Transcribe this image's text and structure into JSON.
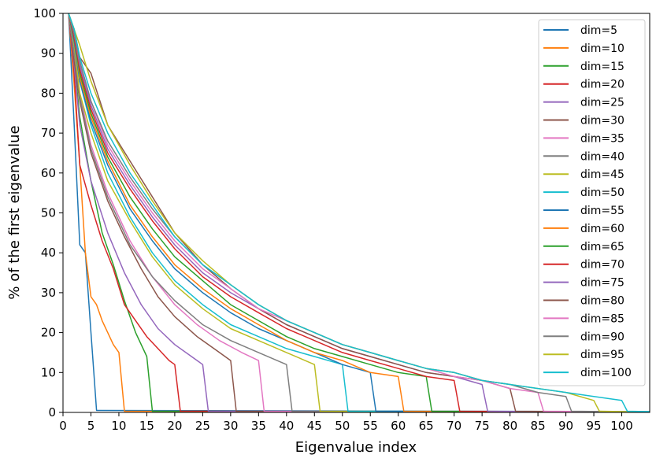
{
  "chart_data": {
    "type": "line",
    "xlabel": "Eigenvalue index",
    "ylabel": "% of the first eigenvalue",
    "xlim": [
      0,
      105
    ],
    "ylim": [
      0,
      100
    ],
    "xticks": [
      0,
      5,
      10,
      15,
      20,
      25,
      30,
      35,
      40,
      45,
      50,
      55,
      60,
      65,
      70,
      75,
      80,
      85,
      90,
      95,
      100
    ],
    "yticks": [
      0,
      10,
      20,
      30,
      40,
      50,
      60,
      70,
      80,
      90,
      100
    ],
    "grid": false,
    "legend_position": "top-right",
    "series": [
      {
        "name": "dim=5",
        "dim": 5,
        "x": [
          1,
          2,
          3,
          4,
          5,
          6,
          105
        ],
        "y": [
          100,
          72,
          42,
          40,
          20,
          0.5,
          0.2
        ],
        "color": "#1f77b4"
      },
      {
        "name": "dim=10",
        "dim": 10,
        "x": [
          1,
          2,
          3,
          4,
          5,
          6,
          7,
          8,
          9,
          10,
          11,
          105
        ],
        "y": [
          100,
          82,
          62,
          40,
          29,
          27,
          23,
          20,
          17,
          15,
          0.3,
          0.1
        ],
        "color": "#ff7f0e"
      },
      {
        "name": "dim=15",
        "dim": 15,
        "x": [
          1,
          2,
          3,
          5,
          7,
          9,
          11,
          13,
          15,
          16,
          105
        ],
        "y": [
          100,
          88,
          74,
          58,
          45,
          37,
          28,
          20,
          14,
          0.3,
          0.1
        ],
        "color": "#2ca02c"
      },
      {
        "name": "dim=20",
        "dim": 20,
        "x": [
          1,
          2,
          3,
          5,
          7,
          9,
          11,
          13,
          15,
          17,
          19,
          20,
          21,
          105
        ],
        "y": [
          100,
          85,
          62,
          52,
          43,
          36,
          27,
          23,
          19,
          16,
          13,
          12,
          0.3,
          0.1
        ],
        "color": "#d62728"
      },
      {
        "name": "dim=25",
        "dim": 25,
        "x": [
          1,
          2,
          3,
          5,
          8,
          11,
          14,
          17,
          20,
          23,
          25,
          26,
          105
        ],
        "y": [
          100,
          87,
          72,
          58,
          45,
          35,
          27,
          21,
          17,
          14,
          12,
          0.3,
          0.1
        ],
        "color": "#9467bd"
      },
      {
        "name": "dim=30",
        "dim": 30,
        "x": [
          1,
          2,
          3,
          5,
          8,
          11,
          14,
          17,
          20,
          24,
          28,
          30,
          31,
          105
        ],
        "y": [
          100,
          88,
          78,
          65,
          53,
          44,
          36,
          29,
          24,
          19,
          15,
          13,
          0.3,
          0.1
        ],
        "color": "#8c564b"
      },
      {
        "name": "dim=35",
        "dim": 35,
        "x": [
          1,
          2,
          3,
          5,
          8,
          12,
          16,
          20,
          24,
          28,
          32,
          35,
          36,
          105
        ],
        "y": [
          100,
          90,
          80,
          67,
          55,
          43,
          34,
          27,
          22,
          18,
          15,
          13,
          0.3,
          0.1
        ],
        "color": "#e377c2"
      },
      {
        "name": "dim=40",
        "dim": 40,
        "x": [
          1,
          2,
          3,
          5,
          8,
          12,
          16,
          20,
          25,
          30,
          35,
          40,
          41,
          105
        ],
        "y": [
          100,
          90,
          79,
          66,
          54,
          42,
          34,
          28,
          22,
          18,
          15,
          12,
          0.3,
          0.1
        ],
        "color": "#7f7f7f"
      },
      {
        "name": "dim=45",
        "dim": 45,
        "x": [
          1,
          2,
          3,
          5,
          8,
          12,
          16,
          20,
          25,
          30,
          35,
          40,
          45,
          46,
          105
        ],
        "y": [
          100,
          92,
          80,
          70,
          58,
          48,
          39,
          32,
          26,
          21,
          18,
          15,
          12,
          0.3,
          0.1
        ],
        "color": "#bcbd22"
      },
      {
        "name": "dim=50",
        "dim": 50,
        "x": [
          1,
          2,
          3,
          5,
          8,
          12,
          16,
          20,
          25,
          30,
          35,
          40,
          45,
          50,
          51,
          105
        ],
        "y": [
          100,
          93,
          83,
          72,
          60,
          49,
          40,
          33,
          27,
          22,
          19,
          16,
          14,
          12,
          0.3,
          0.1
        ],
        "color": "#17becf"
      },
      {
        "name": "dim=55",
        "dim": 55,
        "x": [
          1,
          2,
          3,
          5,
          8,
          12,
          16,
          20,
          25,
          30,
          35,
          40,
          45,
          50,
          55,
          56,
          105
        ],
        "y": [
          100,
          93,
          83,
          73,
          62,
          51,
          43,
          36,
          30,
          25,
          21,
          18,
          15,
          12,
          10,
          0.3,
          0.1
        ],
        "color": "#1f77b4"
      },
      {
        "name": "dim=60",
        "dim": 60,
        "x": [
          1,
          2,
          3,
          5,
          8,
          12,
          16,
          20,
          25,
          30,
          35,
          40,
          45,
          50,
          55,
          60,
          61,
          105
        ],
        "y": [
          100,
          94,
          84,
          74,
          63,
          52,
          44,
          37,
          31,
          26,
          22,
          18,
          15,
          13,
          10,
          9,
          0.3,
          0.1
        ],
        "color": "#ff7f0e"
      },
      {
        "name": "dim=65",
        "dim": 65,
        "x": [
          1,
          2,
          3,
          5,
          8,
          12,
          16,
          20,
          25,
          30,
          35,
          40,
          45,
          50,
          55,
          60,
          65,
          66,
          105
        ],
        "y": [
          100,
          94,
          85,
          75,
          64,
          54,
          46,
          39,
          33,
          27,
          23,
          19,
          16,
          14,
          12,
          10,
          9,
          0.3,
          0.1
        ],
        "color": "#2ca02c"
      },
      {
        "name": "dim=70",
        "dim": 70,
        "x": [
          1,
          2,
          3,
          5,
          8,
          12,
          16,
          20,
          25,
          30,
          35,
          40,
          45,
          50,
          55,
          60,
          65,
          70,
          71,
          105
        ],
        "y": [
          100,
          94,
          86,
          76,
          65,
          56,
          48,
          41,
          34,
          29,
          25,
          21,
          18,
          15,
          13,
          11,
          9,
          8,
          0.3,
          0.1
        ],
        "color": "#d62728"
      },
      {
        "name": "dim=75",
        "dim": 75,
        "x": [
          1,
          2,
          3,
          5,
          8,
          12,
          16,
          20,
          25,
          30,
          35,
          40,
          45,
          50,
          55,
          60,
          65,
          70,
          75,
          76,
          105
        ],
        "y": [
          100,
          95,
          87,
          77,
          66,
          57,
          49,
          42,
          35,
          30,
          26,
          22,
          19,
          16,
          14,
          12,
          10,
          9,
          7,
          0.3,
          0.1
        ],
        "color": "#9467bd"
      },
      {
        "name": "dim=80",
        "dim": 80,
        "x": [
          1,
          2,
          3,
          5,
          8,
          12,
          16,
          20,
          25,
          30,
          35,
          40,
          45,
          50,
          55,
          60,
          65,
          70,
          75,
          80,
          81,
          105
        ],
        "y": [
          100,
          96,
          89,
          85,
          72,
          63,
          54,
          45,
          37,
          31,
          26,
          22,
          19,
          16,
          14,
          12,
          10,
          9,
          8,
          6,
          0.3,
          0.1
        ],
        "color": "#8c564b"
      },
      {
        "name": "dim=85",
        "dim": 85,
        "x": [
          1,
          2,
          3,
          5,
          8,
          12,
          16,
          20,
          25,
          30,
          35,
          40,
          45,
          50,
          55,
          60,
          65,
          70,
          75,
          80,
          85,
          86,
          105
        ],
        "y": [
          100,
          95,
          88,
          78,
          67,
          58,
          50,
          43,
          36,
          31,
          26,
          23,
          20,
          17,
          15,
          13,
          11,
          9,
          8,
          6,
          5,
          0.3,
          0.1
        ],
        "color": "#e377c2"
      },
      {
        "name": "dim=90",
        "dim": 90,
        "x": [
          1,
          2,
          3,
          5,
          8,
          12,
          16,
          20,
          25,
          30,
          35,
          40,
          45,
          50,
          55,
          60,
          65,
          70,
          75,
          80,
          85,
          90,
          91,
          105
        ],
        "y": [
          100,
          95,
          88,
          78,
          68,
          59,
          51,
          44,
          37,
          32,
          27,
          23,
          20,
          17,
          15,
          13,
          11,
          10,
          8,
          7,
          5,
          4,
          0.3,
          0.1
        ],
        "color": "#7f7f7f"
      },
      {
        "name": "dim=95",
        "dim": 95,
        "x": [
          1,
          2,
          3,
          5,
          8,
          12,
          16,
          20,
          25,
          30,
          35,
          40,
          45,
          50,
          55,
          60,
          65,
          70,
          75,
          80,
          85,
          90,
          95,
          96,
          105
        ],
        "y": [
          100,
          96,
          92,
          83,
          72,
          62,
          53,
          45,
          38,
          32,
          27,
          23,
          20,
          17,
          15,
          13,
          11,
          10,
          8,
          7,
          6,
          5,
          3,
          0.3,
          0.1
        ],
        "color": "#bcbd22"
      },
      {
        "name": "dim=100",
        "dim": 100,
        "x": [
          1,
          2,
          3,
          5,
          8,
          12,
          16,
          20,
          25,
          30,
          35,
          40,
          45,
          50,
          55,
          60,
          65,
          70,
          75,
          80,
          85,
          90,
          95,
          100,
          101,
          105
        ],
        "y": [
          100,
          96,
          89,
          80,
          70,
          60,
          52,
          44,
          37,
          32,
          27,
          23,
          20,
          17,
          15,
          13,
          11,
          10,
          8,
          7,
          6,
          5,
          4,
          3,
          0.3,
          0.2
        ],
        "color": "#17becf"
      }
    ]
  }
}
